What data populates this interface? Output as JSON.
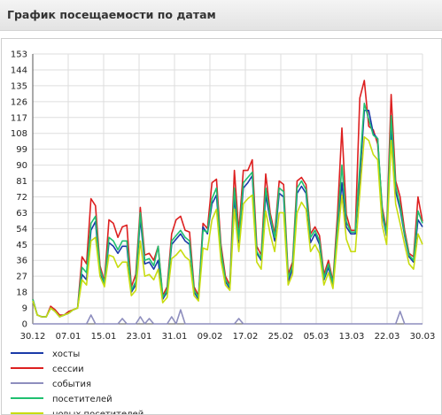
{
  "header": {
    "title": "График посещаемости по датам"
  },
  "chart_data": {
    "type": "line",
    "title": "",
    "xlabel": "",
    "ylabel": "",
    "ylim": [
      0,
      153
    ],
    "yticks": [
      0,
      9,
      18,
      27,
      36,
      45,
      54,
      63,
      72,
      81,
      90,
      99,
      108,
      117,
      126,
      135,
      144,
      153
    ],
    "xticks": [
      "30.12",
      "07.01",
      "15.01",
      "23.01",
      "31.01",
      "09.02",
      "17.02",
      "25.02",
      "05.03",
      "13.03",
      "22.03",
      "30.03"
    ],
    "grid": true,
    "legend_position": "bottom-left",
    "series": [
      {
        "name": "хосты",
        "color": "#1a3aa8",
        "values": [
          13,
          5,
          4,
          4,
          9,
          7,
          4,
          5,
          6,
          8,
          9,
          28,
          25,
          53,
          58,
          28,
          22,
          46,
          44,
          40,
          44,
          44,
          18,
          22,
          60,
          34,
          35,
          31,
          36,
          14,
          18,
          45,
          48,
          51,
          47,
          45,
          18,
          14,
          55,
          51,
          68,
          73,
          40,
          24,
          20,
          72,
          46,
          77,
          80,
          84,
          40,
          36,
          73,
          59,
          47,
          74,
          72,
          24,
          31,
          74,
          78,
          74,
          46,
          51,
          45,
          25,
          32,
          22,
          52,
          80,
          55,
          51,
          51,
          82,
          121,
          121,
          108,
          105,
          62,
          50,
          112,
          75,
          65,
          50,
          38,
          35,
          59,
          55
        ]
      },
      {
        "name": "сессии",
        "color": "#dd2020",
        "values": [
          14,
          5,
          4,
          4,
          10,
          8,
          5,
          5,
          7,
          8,
          9,
          38,
          34,
          71,
          67,
          33,
          24,
          59,
          57,
          49,
          55,
          56,
          21,
          28,
          66,
          39,
          40,
          36,
          44,
          16,
          21,
          51,
          59,
          61,
          53,
          52,
          21,
          16,
          57,
          54,
          80,
          82,
          45,
          27,
          22,
          87,
          52,
          87,
          87,
          93,
          44,
          39,
          85,
          63,
          51,
          81,
          79,
          28,
          35,
          81,
          83,
          79,
          51,
          55,
          50,
          28,
          36,
          24,
          61,
          111,
          62,
          53,
          53,
          128,
          138,
          112,
          110,
          102,
          66,
          53,
          130,
          81,
          72,
          53,
          40,
          38,
          72,
          58
        ]
      },
      {
        "name": "события",
        "color": "#8e8ebe",
        "values": [
          0,
          0,
          0,
          0,
          0,
          0,
          0,
          0,
          0,
          0,
          0,
          0,
          0,
          5,
          0,
          0,
          0,
          0,
          0,
          0,
          3,
          0,
          0,
          0,
          4,
          0,
          3,
          0,
          0,
          0,
          0,
          4,
          0,
          8,
          0,
          0,
          0,
          0,
          0,
          0,
          0,
          0,
          0,
          0,
          0,
          0,
          3,
          0,
          0,
          0,
          0,
          0,
          0,
          0,
          0,
          0,
          0,
          0,
          0,
          0,
          0,
          0,
          0,
          0,
          0,
          0,
          0,
          0,
          0,
          0,
          0,
          0,
          0,
          0,
          0,
          0,
          0,
          0,
          0,
          0,
          0,
          0,
          7,
          0,
          0,
          0,
          0,
          0
        ]
      },
      {
        "name": "посетителей",
        "color": "#20c070",
        "values": [
          14,
          5,
          4,
          4,
          9,
          7,
          4,
          5,
          6,
          8,
          9,
          32,
          29,
          57,
          61,
          31,
          23,
          49,
          47,
          42,
          47,
          47,
          19,
          24,
          63,
          36,
          37,
          33,
          44,
          15,
          19,
          47,
          50,
          53,
          49,
          47,
          19,
          15,
          53,
          52,
          71,
          77,
          42,
          25,
          21,
          77,
          48,
          80,
          83,
          86,
          41,
          37,
          77,
          61,
          49,
          77,
          75,
          26,
          33,
          77,
          81,
          76,
          49,
          53,
          47,
          26,
          34,
          23,
          55,
          90,
          58,
          52,
          52,
          89,
          125,
          116,
          107,
          105,
          64,
          51,
          118,
          78,
          67,
          51,
          39,
          36,
          64,
          57
        ]
      },
      {
        "name": "новых посетителей",
        "color": "#c8dc10",
        "values": [
          13,
          5,
          4,
          4,
          9,
          7,
          4,
          5,
          6,
          8,
          9,
          25,
          22,
          47,
          49,
          27,
          21,
          39,
          38,
          32,
          35,
          35,
          16,
          19,
          47,
          27,
          28,
          25,
          31,
          12,
          15,
          37,
          39,
          42,
          38,
          36,
          16,
          13,
          43,
          42,
          59,
          65,
          36,
          22,
          19,
          65,
          41,
          68,
          71,
          73,
          35,
          31,
          64,
          51,
          41,
          63,
          63,
          22,
          28,
          63,
          69,
          65,
          41,
          45,
          40,
          22,
          29,
          20,
          47,
          73,
          48,
          41,
          41,
          74,
          106,
          104,
          96,
          93,
          56,
          45,
          104,
          68,
          57,
          45,
          34,
          31,
          51,
          45
        ]
      }
    ]
  }
}
